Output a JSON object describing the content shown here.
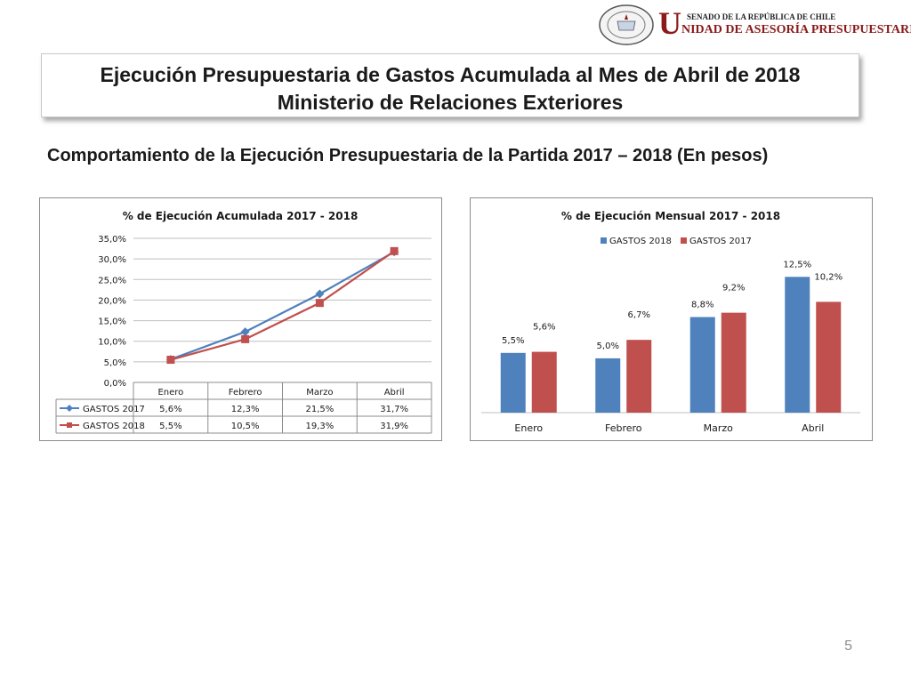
{
  "logo": {
    "seal_text": "REPÚBLICA DE CHILE",
    "seal_bottom": "SENADO",
    "big_letter": "U",
    "line1": "SENADO DE LA REPÚBLICA DE CHILE",
    "line2": "NIDAD DE ASESORÍA PRESUPUESTARIA"
  },
  "title": {
    "line1": "Ejecución Presupuestaria de Gastos Acumulada al Mes de Abril de 2018",
    "line2": "Ministerio de Relaciones Exteriores"
  },
  "subtitle": "Comportamiento de la Ejecución Presupuestaria de la Partida 2017 – 2018 (En pesos)",
  "page_number": "5",
  "colors": {
    "blue": "#4f81bd",
    "red": "#c0504d",
    "grid": "#bfbfbf"
  },
  "chart_data": [
    {
      "type": "line",
      "title": "% de Ejecución Acumulada 2017 - 2018",
      "categories": [
        "Enero",
        "Febrero",
        "Marzo",
        "Abril"
      ],
      "ylim": [
        0,
        35
      ],
      "yticks": [
        "0,0%",
        "5,0%",
        "10,0%",
        "15,0%",
        "20,0%",
        "25,0%",
        "30,0%",
        "35,0%"
      ],
      "grid": true,
      "legend": "data-table",
      "series": [
        {
          "name": "GASTOS 2017",
          "values": [
            5.6,
            12.3,
            21.5,
            31.7
          ],
          "labels": [
            "5,6%",
            "12,3%",
            "21,5%",
            "31,7%"
          ],
          "color": "#4f81bd",
          "marker": "diamond"
        },
        {
          "name": "GASTOS 2018",
          "values": [
            5.5,
            10.5,
            19.3,
            31.9
          ],
          "labels": [
            "5,5%",
            "10,5%",
            "19,3%",
            "31,9%"
          ],
          "color": "#c0504d",
          "marker": "square"
        }
      ]
    },
    {
      "type": "bar",
      "title": "% de Ejecución Mensual 2017 - 2018",
      "categories": [
        "Enero",
        "Febrero",
        "Marzo",
        "Abril"
      ],
      "ylim": [
        0,
        14
      ],
      "grid": false,
      "legend": "top",
      "series": [
        {
          "name": "GASTOS 2018",
          "values": [
            5.5,
            5.0,
            8.8,
            12.5
          ],
          "labels": [
            "5,5%",
            "5,0%",
            "8,8%",
            "12,5%"
          ],
          "color": "#4f81bd"
        },
        {
          "name": "GASTOS 2017",
          "values": [
            5.6,
            6.7,
            9.2,
            10.2
          ],
          "labels": [
            "5,6%",
            "6,7%",
            "9,2%",
            "10,2%"
          ],
          "color": "#c0504d"
        }
      ]
    }
  ]
}
